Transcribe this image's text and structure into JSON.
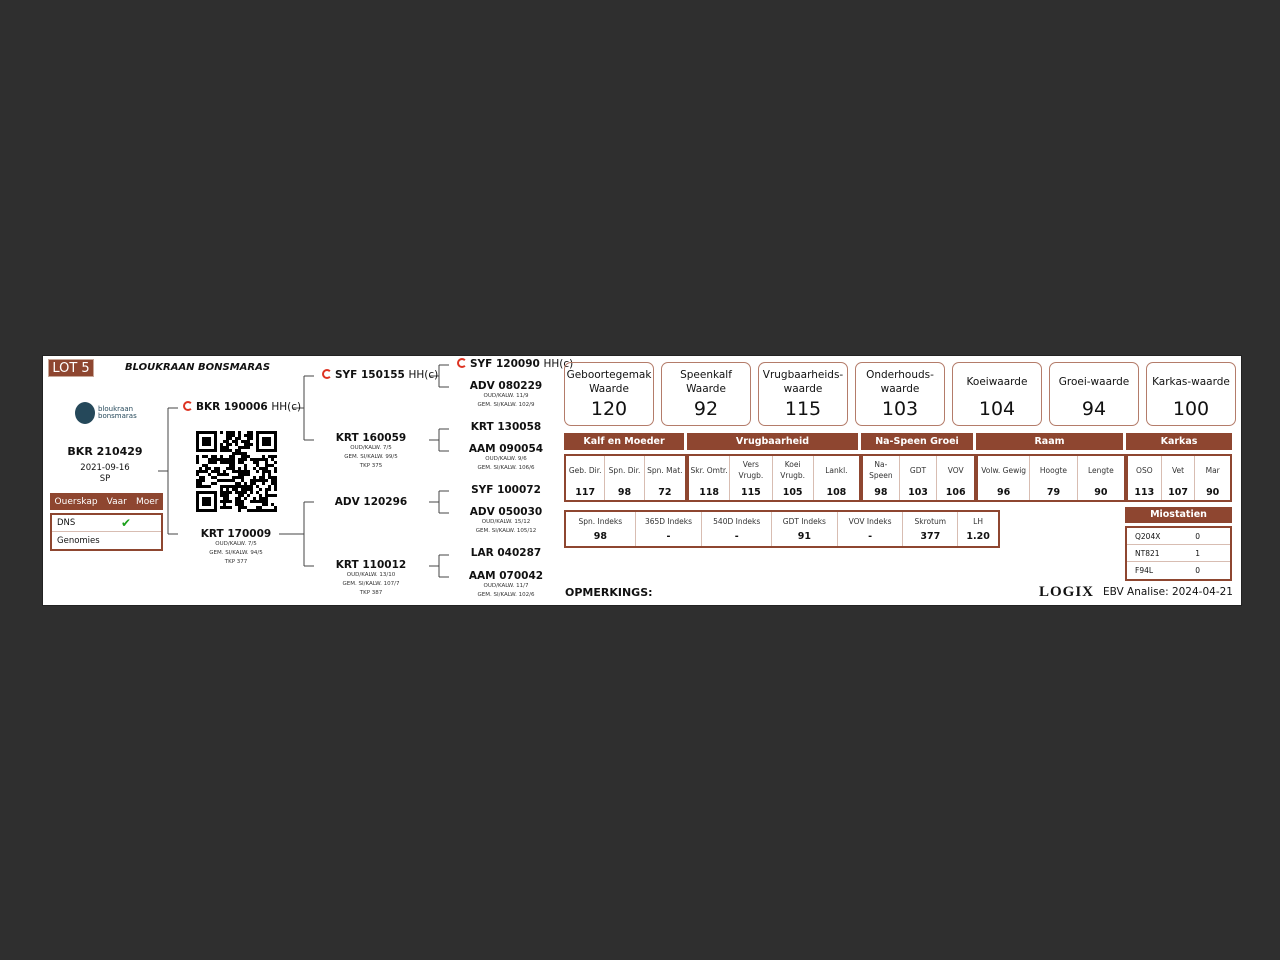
{
  "header": {
    "lot": "LOT 5",
    "breeder": "BLOUKRAAN BONSMARAS",
    "logo_text": [
      "bloukraan",
      "bonsmaras"
    ]
  },
  "animal": {
    "id": "BKR 210429",
    "date": "2021-09-16",
    "sex": "SP"
  },
  "parentage": {
    "headers": [
      "Ouerskap",
      "Vaar",
      "Moer"
    ],
    "rows": [
      {
        "label": "DNS",
        "vaar": "✔"
      },
      {
        "label": "Genomies"
      }
    ]
  },
  "pedigree": [
    {
      "id": "BKR 190006",
      "suffix": "HH(c)",
      "genomic": true,
      "lines": []
    },
    {
      "id": "KRT 170009",
      "suffix": "",
      "genomic": false,
      "lines": [
        "OUD/KALW. 7/5",
        "GEM. SI/KALW. 94/5",
        "TKP 377"
      ]
    },
    {
      "id": "SYF 150155",
      "suffix": "HH(c)",
      "genomic": true,
      "lines": []
    },
    {
      "id": "KRT 160059",
      "suffix": "",
      "genomic": false,
      "lines": [
        "OUD/KALW. 7/5",
        "GEM. SI/KALW. 99/5",
        "TKP 375"
      ]
    },
    {
      "id": "ADV 120296",
      "suffix": "",
      "genomic": false,
      "lines": []
    },
    {
      "id": "KRT 110012",
      "suffix": "",
      "genomic": false,
      "lines": [
        "OUD/KALW. 13/10",
        "GEM. SI/KALW. 107/7",
        "TKP 387"
      ]
    },
    {
      "id": "SYF 120090",
      "suffix": "HH(c)",
      "genomic": true,
      "lines": []
    },
    {
      "id": "ADV 080229",
      "suffix": "",
      "genomic": false,
      "lines": [
        "OUD/KALW. 11/9",
        "GEM. SI/KALW. 102/9"
      ]
    },
    {
      "id": "KRT 130058",
      "suffix": "",
      "genomic": false,
      "lines": []
    },
    {
      "id": "AAM 090054",
      "suffix": "",
      "genomic": false,
      "lines": [
        "OUD/KALW. 9/6",
        "GEM. SI/KALW. 106/6"
      ]
    },
    {
      "id": "SYF 100072",
      "suffix": "",
      "genomic": false,
      "lines": []
    },
    {
      "id": "ADV 050030",
      "suffix": "",
      "genomic": false,
      "lines": [
        "OUD/KALW. 15/12",
        "GEM. SI/KALW. 105/12"
      ]
    },
    {
      "id": "LAR 040287",
      "suffix": "",
      "genomic": false,
      "lines": []
    },
    {
      "id": "AAM 070042",
      "suffix": "",
      "genomic": false,
      "lines": [
        "OUD/KALW. 11/7",
        "GEM. SI/KALW. 102/6"
      ]
    }
  ],
  "values": [
    {
      "label": "Geboortegemak Waarde",
      "value": "120"
    },
    {
      "label": "Speenkalf Waarde",
      "value": "92"
    },
    {
      "label": "Vrugbaarheids-waarde",
      "value": "115"
    },
    {
      "label": "Onderhouds-waarde",
      "value": "103"
    },
    {
      "label": "Koeiwaarde",
      "value": "104"
    },
    {
      "label": "Groei-waarde",
      "value": "94"
    },
    {
      "label": "Karkas-waarde",
      "value": "100"
    }
  ],
  "groups": [
    {
      "title": "Kalf en Moeder",
      "cells": [
        {
          "h": "Geb. Dir.",
          "v": "117"
        },
        {
          "h": "Spn. Dir.",
          "v": "98"
        },
        {
          "h": "Spn. Mat.",
          "v": "72"
        }
      ]
    },
    {
      "title": "Vrugbaarheid",
      "cells": [
        {
          "h": "Skr. Omtr.",
          "v": "118"
        },
        {
          "h": "Vers Vrugb.",
          "v": "115"
        },
        {
          "h": "Koei Vrugb.",
          "v": "105"
        },
        {
          "h": "Lankl.",
          "v": "108"
        }
      ]
    },
    {
      "title": "Na-Speen Groei",
      "cells": [
        {
          "h": "Na-Speen",
          "v": "98"
        },
        {
          "h": "GDT",
          "v": "103"
        },
        {
          "h": "VOV",
          "v": "106"
        }
      ]
    },
    {
      "title": "Raam",
      "cells": [
        {
          "h": "Volw. Gewig",
          "v": "96"
        },
        {
          "h": "Hoogte",
          "v": "79"
        },
        {
          "h": "Lengte",
          "v": "90"
        }
      ]
    },
    {
      "title": "Karkas",
      "cells": [
        {
          "h": "OSO",
          "v": "113"
        },
        {
          "h": "Vet",
          "v": "107"
        },
        {
          "h": "Mar",
          "v": "90"
        }
      ]
    }
  ],
  "indexes": [
    {
      "h": "Spn. Indeks",
      "v": "98"
    },
    {
      "h": "365D Indeks",
      "v": "-"
    },
    {
      "h": "540D Indeks",
      "v": "-"
    },
    {
      "h": "GDT Indeks",
      "v": "91"
    },
    {
      "h": "VOV Indeks",
      "v": "-"
    },
    {
      "h": "Skrotum",
      "v": "377"
    },
    {
      "h": "LH",
      "v": "1.20"
    }
  ],
  "myostatin": {
    "title": "Miostatien",
    "rows": [
      {
        "gene": "Q204X",
        "v": "0"
      },
      {
        "gene": "NT821",
        "v": "1"
      },
      {
        "gene": "F94L",
        "v": "0"
      }
    ]
  },
  "footer": {
    "remarks": "OPMERKINGS:",
    "brand": "LOGIX",
    "analysis": "EBV Analise: 2024-04-21"
  },
  "colors": {
    "brand": "#8e4630",
    "genomic_icon": "#dd3322",
    "check": "#1aa01a"
  }
}
